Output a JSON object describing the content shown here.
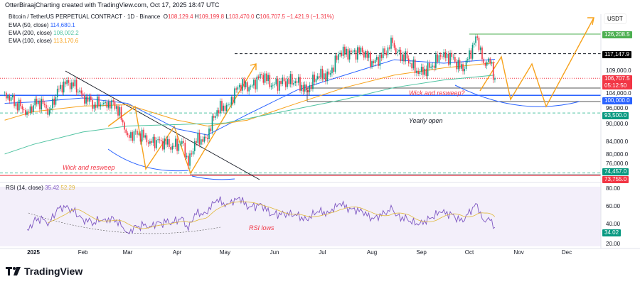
{
  "header": {
    "credit": "OtterBiraajCharting created with TradingView.com, Oct 17, 2025 18:47 UTC",
    "symbol": "Bitcoin / TetherUS PERPETUAL CONTRACT · 1D · Binance",
    "o": "108,129.4",
    "h": "109,199.8",
    "l": "103,470.0",
    "c": "106,707.5",
    "change": "−1,421.9 (−1.31%)"
  },
  "indicators": [
    {
      "label": "EMA (50, close)",
      "value": "114,680.1",
      "color": "#2962ff"
    },
    {
      "label": "EMA (200, close)",
      "value": "108,002.2",
      "color": "#4fc3a1"
    },
    {
      "label": "EMA (100, close)",
      "value": "113,170.6",
      "color": "#f7a21b"
    }
  ],
  "currency": "USDT",
  "price_axis": [
    "109,000.0",
    "104,000.0",
    "96,000.0",
    "90,000.0",
    "84,000.0",
    "80,000.0",
    "76,000.0"
  ],
  "price_tags": {
    "high": "126,208.5",
    "level": "117,147.9",
    "last": "106,707.5",
    "countdown": "05:12:50",
    "round": "100,000.0",
    "yearly_open": "93,500.0",
    "low": "74,457.0",
    "low2": "73,755.0"
  },
  "annotations": {
    "wick_q": "Wick and resweep?",
    "yearly": "Yearly open",
    "wick": "Wick and resweep",
    "rsi_lows": "RSI lows"
  },
  "rsi": {
    "label": "RSI (14, close)",
    "value": "35.42",
    "ma": "52.29",
    "tag": "34.02",
    "axis": [
      "80.00",
      "60.00",
      "40.00",
      "20.00"
    ]
  },
  "x_axis": [
    "2025",
    "Feb",
    "Mar",
    "Apr",
    "May",
    "Jun",
    "Jul",
    "Aug",
    "Sep",
    "Oct",
    "Nov",
    "Dec"
  ],
  "logo": "TradingView",
  "chart_data": {
    "type": "candlestick",
    "scale": "log",
    "ylim": [
      72000,
      132000
    ],
    "closes": [
      [
        "2024-12-14",
        101000
      ],
      [
        "2024-12-21",
        97000
      ],
      [
        "2024-12-28",
        94000
      ],
      [
        "2025-01-04",
        98000
      ],
      [
        "2025-01-11",
        94500
      ],
      [
        "2025-01-18",
        104000
      ],
      [
        "2025-01-25",
        105000
      ],
      [
        "2025-02-01",
        100000
      ],
      [
        "2025-02-08",
        96500
      ],
      [
        "2025-02-15",
        97500
      ],
      [
        "2025-02-22",
        96000
      ],
      [
        "2025-03-01",
        86000
      ],
      [
        "2025-03-08",
        86500
      ],
      [
        "2025-03-15",
        84000
      ],
      [
        "2025-03-22",
        84000
      ],
      [
        "2025-03-29",
        82500
      ],
      [
        "2025-04-05",
        83500
      ],
      [
        "2025-04-08",
        76500
      ],
      [
        "2025-04-12",
        84000
      ],
      [
        "2025-04-19",
        85000
      ],
      [
        "2025-04-26",
        94500
      ],
      [
        "2025-05-03",
        96500
      ],
      [
        "2025-05-10",
        104000
      ],
      [
        "2025-05-17",
        103500
      ],
      [
        "2025-05-24",
        108000
      ],
      [
        "2025-05-31",
        104000
      ],
      [
        "2025-06-07",
        105500
      ],
      [
        "2025-06-14",
        105500
      ],
      [
        "2025-06-21",
        102000
      ],
      [
        "2025-06-28",
        107500
      ],
      [
        "2025-07-05",
        108200
      ],
      [
        "2025-07-12",
        117500
      ],
      [
        "2025-07-19",
        117800
      ],
      [
        "2025-07-26",
        118000
      ],
      [
        "2025-08-02",
        113000
      ],
      [
        "2025-08-09",
        117500
      ],
      [
        "2025-08-14",
        122000
      ],
      [
        "2025-08-16",
        117500
      ],
      [
        "2025-08-23",
        115000
      ],
      [
        "2025-08-30",
        108500
      ],
      [
        "2025-09-06",
        111000
      ],
      [
        "2025-09-13",
        115900
      ],
      [
        "2025-09-20",
        115700
      ],
      [
        "2025-09-27",
        109600
      ],
      [
        "2025-10-04",
        122000
      ],
      [
        "2025-10-06",
        124500
      ],
      [
        "2025-10-10",
        113000
      ],
      [
        "2025-10-13",
        115000
      ],
      [
        "2025-10-17",
        106707.5
      ]
    ],
    "ema50": [
      [
        "2024-12-14",
        97000
      ],
      [
        "2025-01-01",
        97500
      ],
      [
        "2025-02-01",
        99000
      ],
      [
        "2025-03-01",
        97000
      ],
      [
        "2025-04-01",
        88000
      ],
      [
        "2025-04-20",
        86000
      ],
      [
        "2025-05-15",
        93000
      ],
      [
        "2025-06-15",
        102000
      ],
      [
        "2025-07-15",
        108000
      ],
      [
        "2025-08-15",
        114500
      ],
      [
        "2025-09-15",
        113000
      ],
      [
        "2025-10-17",
        114680.1
      ]
    ],
    "ema100": [
      [
        "2024-12-14",
        91000
      ],
      [
        "2025-01-01",
        94000
      ],
      [
        "2025-02-01",
        96000
      ],
      [
        "2025-03-01",
        96500
      ],
      [
        "2025-04-01",
        91000
      ],
      [
        "2025-04-20",
        89000
      ],
      [
        "2025-05-15",
        91000
      ],
      [
        "2025-06-15",
        97000
      ],
      [
        "2025-07-15",
        103000
      ],
      [
        "2025-08-15",
        108000
      ],
      [
        "2025-09-15",
        111000
      ],
      [
        "2025-10-17",
        113170.6
      ]
    ],
    "ema200": [
      [
        "2024-12-14",
        80000
      ],
      [
        "2025-01-01",
        83000
      ],
      [
        "2025-02-01",
        87000
      ],
      [
        "2025-03-01",
        89000
      ],
      [
        "2025-04-01",
        89500
      ],
      [
        "2025-05-01",
        90000
      ],
      [
        "2025-06-15",
        95000
      ],
      [
        "2025-07-15",
        98500
      ],
      [
        "2025-08-15",
        103000
      ],
      [
        "2025-09-15",
        106000
      ],
      [
        "2025-10-17",
        108002.2
      ]
    ],
    "levels": [
      126208.5,
      117147.9,
      106707.5,
      100000,
      93500,
      74457,
      73755
    ],
    "colors": {
      "up": "#089981",
      "down": "#f23645",
      "rsi": "#7e57c2"
    }
  }
}
